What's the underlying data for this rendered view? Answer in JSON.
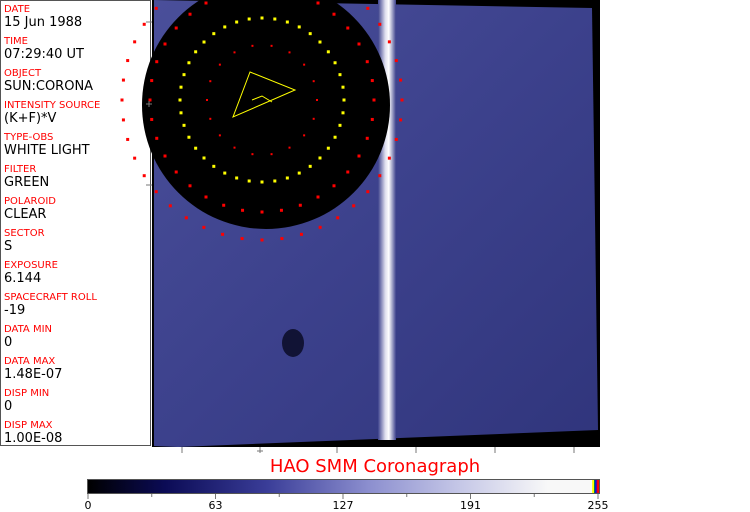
{
  "fields": [
    {
      "label": "DATE",
      "value": "15 Jun 1988"
    },
    {
      "label": "TIME",
      "value": "07:29:40 UT"
    },
    {
      "label": "OBJECT",
      "value": "SUN:CORONA"
    },
    {
      "label": "INTENSITY SOURCE",
      "value": "(K+F)*V"
    },
    {
      "label": "TYPE-OBS",
      "value": "WHITE LIGHT"
    },
    {
      "label": "FILTER",
      "value": "GREEN"
    },
    {
      "label": "POLAROID",
      "value": "CLEAR"
    },
    {
      "label": "SECTOR",
      "value": "S"
    },
    {
      "label": "EXPOSURE",
      "value": "6.144"
    },
    {
      "label": "SPACECRAFT ROLL",
      "value": "-19"
    },
    {
      "label": "DATA MIN",
      "value": "0"
    },
    {
      "label": "DATA MAX",
      "value": "1.48E-07"
    },
    {
      "label": "DISP MIN",
      "value": "0"
    },
    {
      "label": "DISP MAX",
      "value": "1.00E-08"
    }
  ],
  "title": "HAO  SMM Coronagraph",
  "colorbar": {
    "ticks": [
      "0",
      "63",
      "127",
      "191",
      "255"
    ],
    "colors": {
      "low": "#000000",
      "mid": "#8c8fcf",
      "high": "#f8f8f8"
    }
  },
  "colors": {
    "label": "#ff0000",
    "overlay_yellow": "#ffff00",
    "overlay_red": "#ff0000"
  }
}
